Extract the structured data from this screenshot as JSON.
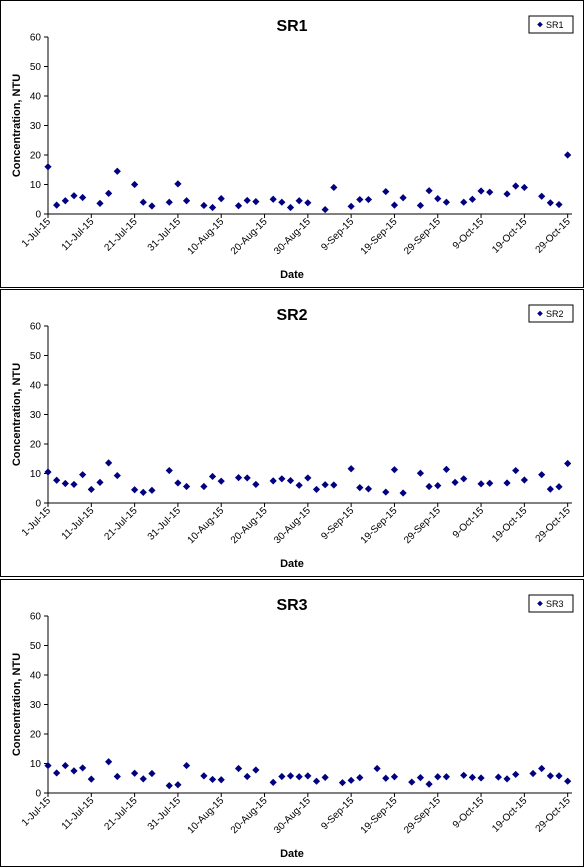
{
  "chart_data": [
    {
      "type": "scatter",
      "title": "SR1",
      "xlabel": "Date",
      "ylabel": "Concentration, NTU",
      "ylim": [
        0,
        60
      ],
      "yticks": [
        "0",
        "10",
        "20",
        "30",
        "40",
        "50",
        "60"
      ],
      "xlim": [
        "1-Jul-15",
        "30-Oct-15"
      ],
      "xtick_labels": [
        "1-Jul-15",
        "11-Jul-15",
        "21-Jul-15",
        "31-Jul-15",
        "10-Aug-15",
        "20-Aug-15",
        "30-Aug-15",
        "9-Sep-15",
        "19-Sep-15",
        "29-Sep-15",
        "9-Oct-15",
        "19-Oct-15",
        "29-Oct-15"
      ],
      "grid": false,
      "legend": "top-right",
      "color": "#000080",
      "series": [
        {
          "name": "SR1",
          "x": [
            "1-Jul-15",
            "3-Jul-15",
            "5-Jul-15",
            "7-Jul-15",
            "9-Jul-15",
            "13-Jul-15",
            "15-Jul-15",
            "17-Jul-15",
            "21-Jul-15",
            "23-Jul-15",
            "25-Jul-15",
            "29-Jul-15",
            "31-Jul-15",
            "2-Aug-15",
            "6-Aug-15",
            "8-Aug-15",
            "10-Aug-15",
            "14-Aug-15",
            "16-Aug-15",
            "18-Aug-15",
            "22-Aug-15",
            "24-Aug-15",
            "26-Aug-15",
            "28-Aug-15",
            "30-Aug-15",
            "3-Sep-15",
            "5-Sep-15",
            "9-Sep-15",
            "11-Sep-15",
            "13-Sep-15",
            "17-Sep-15",
            "19-Sep-15",
            "21-Sep-15",
            "25-Sep-15",
            "27-Sep-15",
            "29-Sep-15",
            "1-Oct-15",
            "5-Oct-15",
            "7-Oct-15",
            "9-Oct-15",
            "11-Oct-15",
            "15-Oct-15",
            "17-Oct-15",
            "19-Oct-15",
            "23-Oct-15",
            "25-Oct-15",
            "27-Oct-15",
            "29-Oct-15"
          ],
          "values": [
            16.0,
            3.0,
            4.5,
            6.2,
            5.6,
            3.6,
            7.0,
            14.5,
            10.0,
            4.0,
            2.7,
            4.0,
            10.2,
            4.5,
            2.9,
            2.2,
            5.2,
            2.8,
            4.6,
            4.2,
            5.0,
            4.0,
            2.2,
            4.5,
            3.8,
            1.5,
            9.0,
            2.6,
            4.9,
            4.9,
            7.6,
            3.0,
            5.5,
            2.9,
            7.9,
            5.2,
            4.0,
            4.0,
            5.0,
            7.8,
            7.4,
            6.8,
            9.5,
            9.0,
            6.0,
            3.8,
            3.2,
            20.0
          ]
        }
      ]
    },
    {
      "type": "scatter",
      "title": "SR2",
      "xlabel": "Date",
      "ylabel": "Concentration, NTU",
      "ylim": [
        0,
        60
      ],
      "yticks": [
        "0",
        "10",
        "20",
        "30",
        "40",
        "50",
        "60"
      ],
      "xlim": [
        "1-Jul-15",
        "30-Oct-15"
      ],
      "xtick_labels": [
        "1-Jul-15",
        "11-Jul-15",
        "21-Jul-15",
        "31-Jul-15",
        "10-Aug-15",
        "20-Aug-15",
        "30-Aug-15",
        "9-Sep-15",
        "19-Sep-15",
        "29-Sep-15",
        "9-Oct-15",
        "19-Oct-15",
        "29-Oct-15"
      ],
      "grid": false,
      "legend": "top-right",
      "color": "#000080",
      "series": [
        {
          "name": "SR2",
          "x": [
            "1-Jul-15",
            "3-Jul-15",
            "5-Jul-15",
            "7-Jul-15",
            "9-Jul-15",
            "11-Jul-15",
            "13-Jul-15",
            "15-Jul-15",
            "17-Jul-15",
            "21-Jul-15",
            "23-Jul-15",
            "25-Jul-15",
            "29-Jul-15",
            "31-Jul-15",
            "2-Aug-15",
            "6-Aug-15",
            "8-Aug-15",
            "10-Aug-15",
            "14-Aug-15",
            "16-Aug-15",
            "18-Aug-15",
            "22-Aug-15",
            "24-Aug-15",
            "26-Aug-15",
            "28-Aug-15",
            "30-Aug-15",
            "1-Sep-15",
            "3-Sep-15",
            "5-Sep-15",
            "9-Sep-15",
            "11-Sep-15",
            "13-Sep-15",
            "17-Sep-15",
            "19-Sep-15",
            "21-Sep-15",
            "25-Sep-15",
            "27-Sep-15",
            "29-Sep-15",
            "1-Oct-15",
            "3-Oct-15",
            "5-Oct-15",
            "9-Oct-15",
            "11-Oct-15",
            "15-Oct-15",
            "17-Oct-15",
            "19-Oct-15",
            "23-Oct-15",
            "25-Oct-15",
            "27-Oct-15",
            "29-Oct-15"
          ],
          "values": [
            10.5,
            7.7,
            6.6,
            6.3,
            9.6,
            4.6,
            7.0,
            13.6,
            9.3,
            4.5,
            3.6,
            4.3,
            11.0,
            6.8,
            5.6,
            5.6,
            9.0,
            7.4,
            8.6,
            8.5,
            6.3,
            7.5,
            8.2,
            7.6,
            6.0,
            8.5,
            4.6,
            6.2,
            6.1,
            11.6,
            5.2,
            4.8,
            3.7,
            11.3,
            3.4,
            10.1,
            5.6,
            5.9,
            11.4,
            7.0,
            8.2,
            6.5,
            6.7,
            6.8,
            11.0,
            7.8,
            9.6,
            4.7,
            5.5,
            13.4
          ]
        }
      ]
    },
    {
      "type": "scatter",
      "title": "SR3",
      "xlabel": "Date",
      "ylabel": "Concentration, NTU",
      "ylim": [
        0,
        60
      ],
      "yticks": [
        "0",
        "10",
        "20",
        "30",
        "40",
        "50",
        "60"
      ],
      "xlim": [
        "1-Jul-15",
        "30-Oct-15"
      ],
      "xtick_labels": [
        "1-Jul-15",
        "11-Jul-15",
        "21-Jul-15",
        "31-Jul-15",
        "10-Aug-15",
        "20-Aug-15",
        "30-Aug-15",
        "9-Sep-15",
        "19-Sep-15",
        "29-Sep-15",
        "9-Oct-15",
        "19-Oct-15",
        "29-Oct-15"
      ],
      "grid": false,
      "legend": "top-right",
      "color": "#000080",
      "series": [
        {
          "name": "SR3",
          "x": [
            "1-Jul-15",
            "3-Jul-15",
            "5-Jul-15",
            "7-Jul-15",
            "9-Jul-15",
            "11-Jul-15",
            "15-Jul-15",
            "17-Jul-15",
            "21-Jul-15",
            "23-Jul-15",
            "25-Jul-15",
            "29-Jul-15",
            "31-Jul-15",
            "2-Aug-15",
            "6-Aug-15",
            "8-Aug-15",
            "10-Aug-15",
            "14-Aug-15",
            "16-Aug-15",
            "18-Aug-15",
            "22-Aug-15",
            "24-Aug-15",
            "26-Aug-15",
            "28-Aug-15",
            "30-Aug-15",
            "1-Sep-15",
            "3-Sep-15",
            "7-Sep-15",
            "9-Sep-15",
            "11-Sep-15",
            "15-Sep-15",
            "17-Sep-15",
            "19-Sep-15",
            "23-Sep-15",
            "25-Sep-15",
            "27-Sep-15",
            "29-Sep-15",
            "1-Oct-15",
            "5-Oct-15",
            "7-Oct-15",
            "9-Oct-15",
            "13-Oct-15",
            "15-Oct-15",
            "17-Oct-15",
            "21-Oct-15",
            "23-Oct-15",
            "25-Oct-15",
            "27-Oct-15",
            "29-Oct-15"
          ],
          "values": [
            9.3,
            6.8,
            9.3,
            7.5,
            8.5,
            4.7,
            10.6,
            5.6,
            6.7,
            4.8,
            6.6,
            2.5,
            2.8,
            9.3,
            5.8,
            4.6,
            4.5,
            8.3,
            5.6,
            7.8,
            3.6,
            5.6,
            5.8,
            5.5,
            5.8,
            4.0,
            5.3,
            3.5,
            4.3,
            5.2,
            8.3,
            5.0,
            5.5,
            3.7,
            5.2,
            3.0,
            5.5,
            5.5,
            6.0,
            5.3,
            5.1,
            5.4,
            4.8,
            6.3,
            6.6,
            8.3,
            5.8,
            5.8,
            4.0
          ]
        }
      ]
    }
  ]
}
